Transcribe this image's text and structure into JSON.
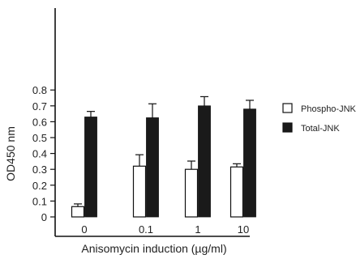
{
  "chart_data": {
    "type": "bar",
    "xlabel": "Anisomycin induction (µg/ml)",
    "ylabel": "OD450 nm",
    "ylim": [
      0,
      0.9
    ],
    "yticks": [
      0,
      0.1,
      0.2,
      0.3,
      0.4,
      0.5,
      0.6,
      0.7,
      0.8
    ],
    "ytick_labels": [
      "0",
      "0.1",
      "0.2",
      "0.3",
      "0.4",
      "0.5",
      "0.6",
      "0.7",
      "0.8"
    ],
    "categories": [
      "0",
      "0.1",
      "1",
      "10"
    ],
    "series": [
      {
        "name": "Phospho-JNK",
        "color": "#ffffff",
        "values": [
          0.065,
          0.32,
          0.3,
          0.315
        ],
        "errors": [
          0.017,
          0.072,
          0.052,
          0.02
        ]
      },
      {
        "name": "Total-JNK",
        "color": "#1a1a1a",
        "values": [
          0.63,
          0.625,
          0.7,
          0.68
        ],
        "errors": [
          0.035,
          0.088,
          0.058,
          0.055
        ]
      }
    ],
    "legend_position": "right",
    "grid": false
  }
}
